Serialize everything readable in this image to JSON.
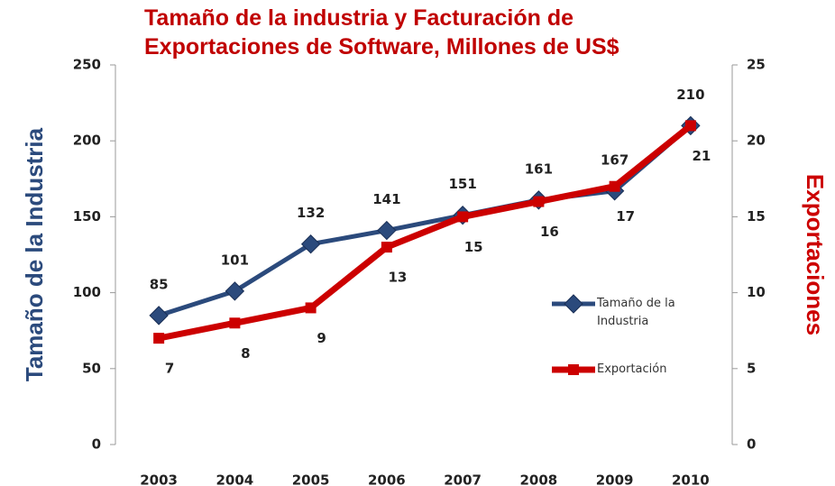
{
  "chart_data": {
    "type": "line",
    "title": "Tamaño de la industria y Facturación de Exportaciones de Software, Millones de US$",
    "categories": [
      "2003",
      "2004",
      "2005",
      "2006",
      "2007",
      "2008",
      "2009",
      "2010"
    ],
    "series": [
      {
        "name": "Tamaño de la Industria",
        "color": "#2b4a7c",
        "marker": "diamond",
        "values": [
          85,
          101,
          132,
          141,
          151,
          161,
          167,
          210
        ]
      },
      {
        "name": "Exportación",
        "color": "#cc0000",
        "marker": "square",
        "axis": "y2",
        "values": [
          7,
          8,
          9,
          13,
          15,
          16,
          17,
          21
        ]
      }
    ],
    "ylabel": "Tamaño de la Industria",
    "y2label": "Exportaciones",
    "ylim": [
      0,
      250
    ],
    "yticks": [
      0,
      50,
      100,
      150,
      200,
      250
    ],
    "y2lim": [
      0,
      25
    ],
    "y2ticks": [
      0,
      5,
      10,
      15,
      20,
      25
    ],
    "grid": false,
    "legend": "right"
  }
}
